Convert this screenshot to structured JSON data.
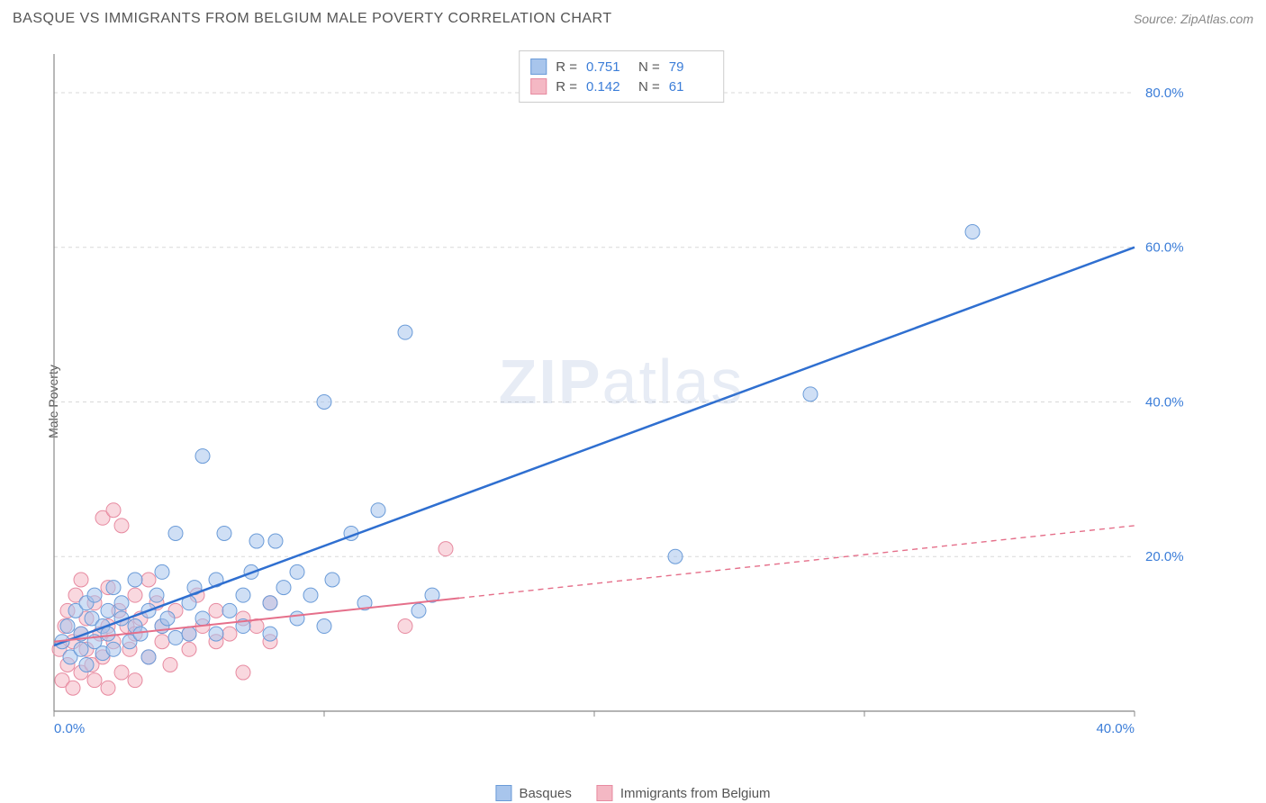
{
  "header": {
    "title": "BASQUE VS IMMIGRANTS FROM BELGIUM MALE POVERTY CORRELATION CHART",
    "source_prefix": "Source: ",
    "source": "ZipAtlas.com"
  },
  "ylabel": "Male Poverty",
  "watermark": {
    "part1": "ZIP",
    "part2": "atlas"
  },
  "chart": {
    "type": "scatter",
    "xlim": [
      0,
      40
    ],
    "ylim": [
      0,
      85
    ],
    "x_ticks": [
      0,
      10,
      20,
      30,
      40
    ],
    "x_tick_labels": [
      "0.0%",
      "",
      "",
      "",
      "40.0%"
    ],
    "y_ticks": [
      20,
      40,
      60,
      80
    ],
    "y_tick_labels": [
      "20.0%",
      "40.0%",
      "60.0%",
      "80.0%"
    ],
    "grid_color": "#d9d9d9",
    "axis_color": "#888888",
    "background": "#ffffff",
    "marker_radius": 8,
    "marker_opacity": 0.55,
    "series": [
      {
        "name": "Basques",
        "fill": "#a8c5ec",
        "stroke": "#6a9bd8",
        "trend_color": "#2f6fd0",
        "trend_width": 2.5,
        "trend_dash": "",
        "trend_x1": 0,
        "trend_y1": 8.5,
        "trend_x2": 40,
        "trend_y2": 60,
        "solid_until_x": 40,
        "R": "0.751",
        "N": "79",
        "points": [
          [
            0.3,
            9
          ],
          [
            0.5,
            11
          ],
          [
            0.6,
            7
          ],
          [
            0.8,
            13
          ],
          [
            1,
            10
          ],
          [
            1,
            8
          ],
          [
            1.2,
            14
          ],
          [
            1.2,
            6
          ],
          [
            1.4,
            12
          ],
          [
            1.5,
            9
          ],
          [
            1.5,
            15
          ],
          [
            1.8,
            11
          ],
          [
            1.8,
            7.5
          ],
          [
            2,
            13
          ],
          [
            2,
            10
          ],
          [
            2.2,
            16
          ],
          [
            2.2,
            8
          ],
          [
            2.5,
            12
          ],
          [
            2.5,
            14
          ],
          [
            2.8,
            9
          ],
          [
            3,
            11
          ],
          [
            3,
            17
          ],
          [
            3.2,
            10
          ],
          [
            3.5,
            13
          ],
          [
            3.5,
            7
          ],
          [
            3.8,
            15
          ],
          [
            4,
            11
          ],
          [
            4,
            18
          ],
          [
            4.2,
            12
          ],
          [
            4.5,
            9.5
          ],
          [
            4.5,
            23
          ],
          [
            5,
            14
          ],
          [
            5,
            10
          ],
          [
            5.2,
            16
          ],
          [
            5.5,
            33
          ],
          [
            5.5,
            12
          ],
          [
            6,
            17
          ],
          [
            6,
            10
          ],
          [
            6.3,
            23
          ],
          [
            6.5,
            13
          ],
          [
            7,
            15
          ],
          [
            7,
            11
          ],
          [
            7.3,
            18
          ],
          [
            7.5,
            22
          ],
          [
            8,
            14
          ],
          [
            8,
            10
          ],
          [
            8.2,
            22
          ],
          [
            8.5,
            16
          ],
          [
            9,
            12
          ],
          [
            9,
            18
          ],
          [
            9.5,
            15
          ],
          [
            10,
            40
          ],
          [
            10,
            11
          ],
          [
            10.3,
            17
          ],
          [
            11,
            23
          ],
          [
            11.5,
            14
          ],
          [
            12,
            26
          ],
          [
            13,
            49
          ],
          [
            13.5,
            13
          ],
          [
            14,
            15
          ],
          [
            23,
            20
          ],
          [
            28,
            41
          ],
          [
            34,
            62
          ]
        ]
      },
      {
        "name": "Immigrants from Belgium",
        "fill": "#f4b8c4",
        "stroke": "#e78aa0",
        "trend_color": "#e56f8a",
        "trend_width": 2,
        "trend_dash": "6,5",
        "trend_x1": 0,
        "trend_y1": 9,
        "trend_x2": 40,
        "trend_y2": 24,
        "solid_until_x": 15,
        "R": "0.142",
        "N": "61",
        "points": [
          [
            0.2,
            8
          ],
          [
            0.3,
            4
          ],
          [
            0.4,
            11
          ],
          [
            0.5,
            6
          ],
          [
            0.5,
            13
          ],
          [
            0.7,
            9
          ],
          [
            0.7,
            3
          ],
          [
            0.8,
            15
          ],
          [
            1,
            10
          ],
          [
            1,
            5
          ],
          [
            1,
            17
          ],
          [
            1.2,
            8
          ],
          [
            1.2,
            12
          ],
          [
            1.4,
            6
          ],
          [
            1.5,
            14
          ],
          [
            1.5,
            4
          ],
          [
            1.7,
            10
          ],
          [
            1.8,
            25
          ],
          [
            1.8,
            7
          ],
          [
            2,
            16
          ],
          [
            2,
            11
          ],
          [
            2,
            3
          ],
          [
            2.2,
            9
          ],
          [
            2.2,
            26
          ],
          [
            2.4,
            13
          ],
          [
            2.5,
            24
          ],
          [
            2.5,
            5
          ],
          [
            2.7,
            11
          ],
          [
            2.8,
            8
          ],
          [
            3,
            15
          ],
          [
            3,
            10
          ],
          [
            3,
            4
          ],
          [
            3.2,
            12
          ],
          [
            3.5,
            17
          ],
          [
            3.5,
            7
          ],
          [
            3.8,
            14
          ],
          [
            4,
            9
          ],
          [
            4,
            11
          ],
          [
            4.3,
            6
          ],
          [
            4.5,
            13
          ],
          [
            5,
            10
          ],
          [
            5,
            8
          ],
          [
            5.3,
            15
          ],
          [
            5.5,
            11
          ],
          [
            6,
            9
          ],
          [
            6,
            13
          ],
          [
            6.5,
            10
          ],
          [
            7,
            12
          ],
          [
            7,
            5
          ],
          [
            7.5,
            11
          ],
          [
            8,
            9
          ],
          [
            8,
            14
          ],
          [
            13,
            11
          ],
          [
            14.5,
            21
          ]
        ]
      }
    ]
  },
  "legend_top": {
    "R_label": "R =",
    "N_label": "N ="
  },
  "legend_bottom": {
    "s1": "Basques",
    "s2": "Immigrants from Belgium"
  }
}
